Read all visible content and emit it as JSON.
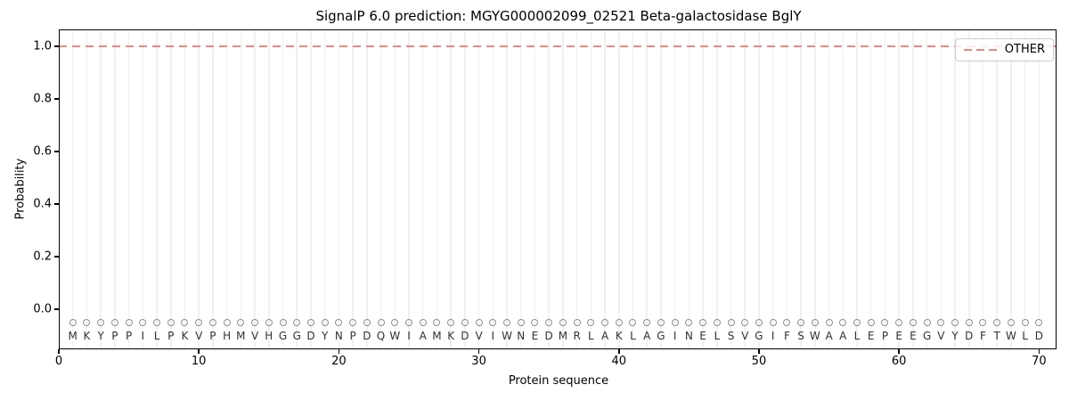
{
  "title": "SignalP 6.0 prediction: MGYG000002099_02521 Beta-galactosidase BglY",
  "chart_data": {
    "type": "line",
    "title": "SignalP 6.0 prediction: MGYG000002099_02521 Beta-galactosidase BglY",
    "xlabel": "Protein sequence",
    "ylabel": "Probability",
    "xlim": [
      0,
      71.25
    ],
    "ylim": [
      -0.1525,
      1.0644
    ],
    "x_ticks": [
      0,
      10,
      20,
      30,
      40,
      50,
      60,
      70
    ],
    "y_ticks": [
      0.0,
      0.2,
      0.4,
      0.6,
      0.8,
      1.0
    ],
    "grid": "vertical gridline at every residue position",
    "legend_position": "upper right",
    "legend": {
      "entries": [
        {
          "label": "OTHER",
          "style": "dashed",
          "color": "#ee8683"
        }
      ]
    },
    "series": [
      {
        "name": "OTHER",
        "style": "dashed",
        "color": "#ee8683",
        "x_range": [
          0,
          71.25
        ],
        "constant_value": 1.0,
        "note": "OTHER probability is a flat dashed line at 1.0 across all 70 residues"
      }
    ],
    "sequence": "MKYPPILPKVPHMVHGGDYNPDQWIAMKDVIWNEDMRLAKLAGINELSVGIFSWAALEPEEGVYDFTWLD",
    "sequence_length": 70,
    "marker_row_value": -0.05,
    "letter_row_value": -0.1
  },
  "colors": {
    "line_other": "#ee8683",
    "gridline": "#f0f0f0",
    "marker_stroke": "#8f8f8f",
    "residue_letter": "#333333",
    "spine": "#000000",
    "legend_border": "#cccccc",
    "background": "#ffffff"
  }
}
